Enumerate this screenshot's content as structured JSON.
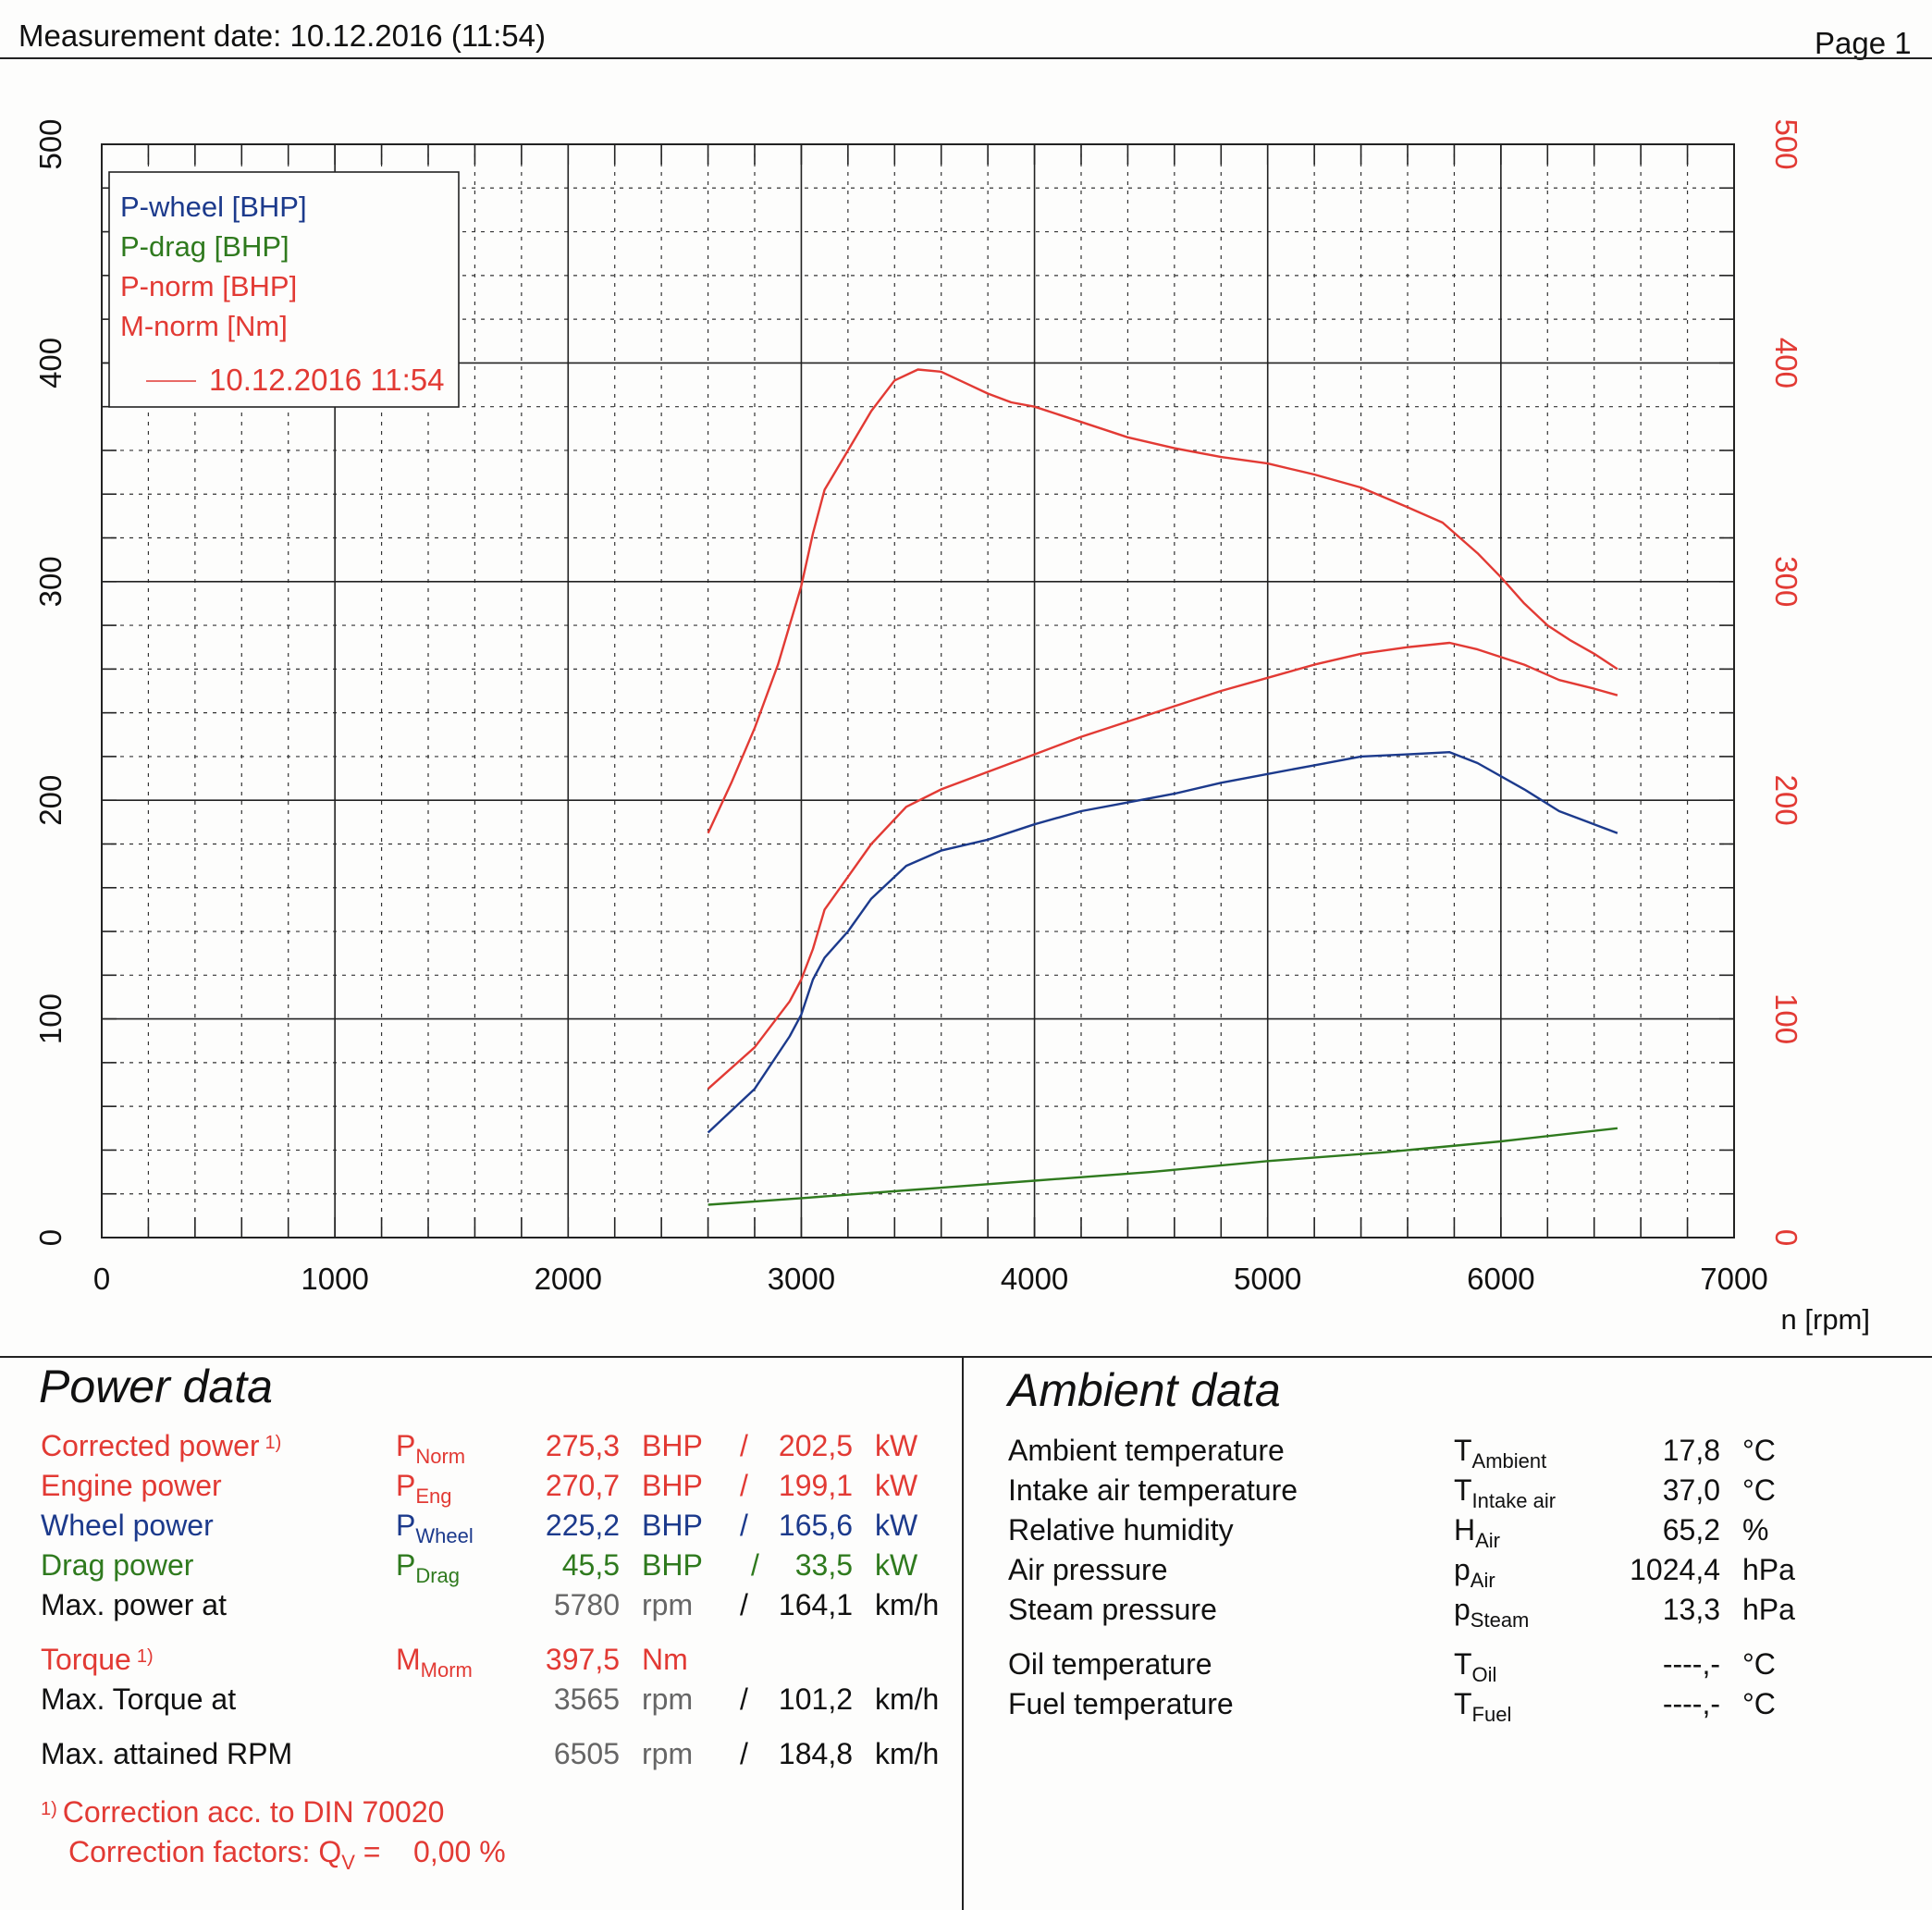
{
  "header": {
    "measurement_date": "Measurement date: 10.12.2016 (11:54)",
    "page": "Page 1"
  },
  "chart_data": {
    "type": "line",
    "x_unit_label": "n [rpm]",
    "x_ticks": [
      "0",
      "1000",
      "2000",
      "3000",
      "4000",
      "5000",
      "6000",
      "7000"
    ],
    "y_left_ticks": [
      "0",
      "100",
      "200",
      "300",
      "400",
      "500"
    ],
    "y_right_ticks": [
      "0",
      "100",
      "200",
      "300",
      "400",
      "500"
    ],
    "xlim": [
      0,
      7000
    ],
    "ylim": [
      0,
      500
    ],
    "grid": true,
    "legend_position": "top-left",
    "legend_run_label": "10.12.2016 11:54",
    "series": [
      {
        "name": "P-wheel [BHP]",
        "color": "#1c3a8c",
        "points": [
          [
            2600,
            48
          ],
          [
            2800,
            68
          ],
          [
            2950,
            92
          ],
          [
            3000,
            102
          ],
          [
            3050,
            118
          ],
          [
            3100,
            128
          ],
          [
            3200,
            140
          ],
          [
            3300,
            155
          ],
          [
            3450,
            170
          ],
          [
            3600,
            177
          ],
          [
            3800,
            182
          ],
          [
            4000,
            189
          ],
          [
            4200,
            195
          ],
          [
            4400,
            199
          ],
          [
            4600,
            203
          ],
          [
            4800,
            208
          ],
          [
            5000,
            212
          ],
          [
            5200,
            216
          ],
          [
            5400,
            220
          ],
          [
            5600,
            221
          ],
          [
            5780,
            222
          ],
          [
            5900,
            217
          ],
          [
            6100,
            205
          ],
          [
            6250,
            195
          ],
          [
            6400,
            189
          ],
          [
            6500,
            185
          ]
        ]
      },
      {
        "name": "P-drag [BHP]",
        "color": "#2f7a1e",
        "points": [
          [
            2600,
            15
          ],
          [
            3000,
            18
          ],
          [
            3500,
            22
          ],
          [
            4000,
            26
          ],
          [
            4500,
            30
          ],
          [
            5000,
            35
          ],
          [
            5500,
            39
          ],
          [
            6000,
            44
          ],
          [
            6500,
            50
          ]
        ]
      },
      {
        "name": "P-norm [BHP]",
        "color": "#e23a34",
        "points": [
          [
            2600,
            68
          ],
          [
            2800,
            87
          ],
          [
            2950,
            108
          ],
          [
            3000,
            118
          ],
          [
            3050,
            132
          ],
          [
            3100,
            150
          ],
          [
            3200,
            165
          ],
          [
            3300,
            180
          ],
          [
            3450,
            197
          ],
          [
            3600,
            205
          ],
          [
            3800,
            213
          ],
          [
            4000,
            221
          ],
          [
            4200,
            229
          ],
          [
            4400,
            236
          ],
          [
            4600,
            243
          ],
          [
            4800,
            250
          ],
          [
            5000,
            256
          ],
          [
            5200,
            262
          ],
          [
            5400,
            267
          ],
          [
            5600,
            270
          ],
          [
            5780,
            272
          ],
          [
            5900,
            269
          ],
          [
            6100,
            262
          ],
          [
            6250,
            255
          ],
          [
            6400,
            251
          ],
          [
            6500,
            248
          ]
        ]
      },
      {
        "name": "M-norm [Nm]",
        "color": "#e23a34",
        "points": [
          [
            2600,
            185
          ],
          [
            2700,
            208
          ],
          [
            2800,
            233
          ],
          [
            2900,
            262
          ],
          [
            3000,
            298
          ],
          [
            3050,
            322
          ],
          [
            3100,
            342
          ],
          [
            3200,
            360
          ],
          [
            3300,
            378
          ],
          [
            3400,
            392
          ],
          [
            3500,
            397
          ],
          [
            3600,
            396
          ],
          [
            3700,
            391
          ],
          [
            3800,
            386
          ],
          [
            3900,
            382
          ],
          [
            4000,
            380
          ],
          [
            4200,
            373
          ],
          [
            4400,
            366
          ],
          [
            4600,
            361
          ],
          [
            4800,
            357
          ],
          [
            5000,
            354
          ],
          [
            5200,
            349
          ],
          [
            5400,
            343
          ],
          [
            5600,
            334
          ],
          [
            5750,
            327
          ],
          [
            5900,
            313
          ],
          [
            6000,
            302
          ],
          [
            6100,
            290
          ],
          [
            6200,
            280
          ],
          [
            6300,
            273
          ],
          [
            6400,
            267
          ],
          [
            6500,
            260
          ]
        ]
      }
    ]
  },
  "power": {
    "title": "Power data",
    "corrected": {
      "label": "Corrected power",
      "footnote": "1)",
      "sym": "P",
      "sub": "Norm",
      "v1": "275,3",
      "u1": "BHP",
      "sep": "/",
      "v2": "202,5",
      "u2": "kW"
    },
    "engine": {
      "label": "Engine power",
      "sym": "P",
      "sub": "Eng",
      "v1": "270,7",
      "u1": "BHP",
      "sep": "/",
      "v2": "199,1",
      "u2": "kW"
    },
    "wheel": {
      "label": "Wheel power",
      "sym": "P",
      "sub": "Wheel",
      "v1": "225,2",
      "u1": "BHP",
      "sep": "/",
      "v2": "165,6",
      "u2": "kW"
    },
    "drag": {
      "label": "Drag power",
      "sym": "P",
      "sub": "Drag",
      "v1": "45,5",
      "u1": "BHP",
      "sep": "/",
      "v2": "33,5",
      "u2": "kW"
    },
    "maxpower": {
      "label": "Max. power at",
      "v1": "5780",
      "u1": "rpm",
      "sep": "/",
      "v2": "164,1",
      "u2": "km/h"
    },
    "torque": {
      "label": "Torque",
      "footnote": "1)",
      "sym": "M",
      "sub": "Morm",
      "v1": "397,5",
      "u1": "Nm"
    },
    "maxtorque": {
      "label": "Max. Torque at",
      "v1": "3565",
      "u1": "rpm",
      "sep": "/",
      "v2": "101,2",
      "u2": "km/h"
    },
    "maxrpm": {
      "label": "Max. attained RPM",
      "v1": "6505",
      "u1": "rpm",
      "sep": "/",
      "v2": "184,8",
      "u2": "km/h"
    },
    "note1_mark": "1)",
    "note1": "Correction acc. to DIN 70020",
    "note2_prefix": "Correction factors: Q",
    "note2_sub": "V",
    "note2_suffix": " =    0,00 %"
  },
  "ambient": {
    "title": "Ambient data",
    "rows": [
      {
        "label": "Ambient temperature",
        "sym": "T",
        "sub": "Ambient",
        "value": "17,8",
        "unit": "°C"
      },
      {
        "label": "Intake air temperature",
        "sym": "T",
        "sub": "Intake air",
        "value": "37,0",
        "unit": "°C"
      },
      {
        "label": "Relative humidity",
        "sym": "H",
        "sub": "Air",
        "value": "65,2",
        "unit": "%"
      },
      {
        "label": "Air pressure",
        "sym": "p",
        "sub": "Air",
        "value": "1024,4",
        "unit": "hPa"
      },
      {
        "label": "Steam pressure",
        "sym": "p",
        "sub": "Steam",
        "value": "13,3",
        "unit": "hPa"
      },
      {
        "label": "Oil temperature",
        "sym": "T",
        "sub": "Oil",
        "value": "----,-",
        "unit": "°C"
      },
      {
        "label": "Fuel temperature",
        "sym": "T",
        "sub": "Fuel",
        "value": "----,-",
        "unit": "°C"
      }
    ]
  }
}
